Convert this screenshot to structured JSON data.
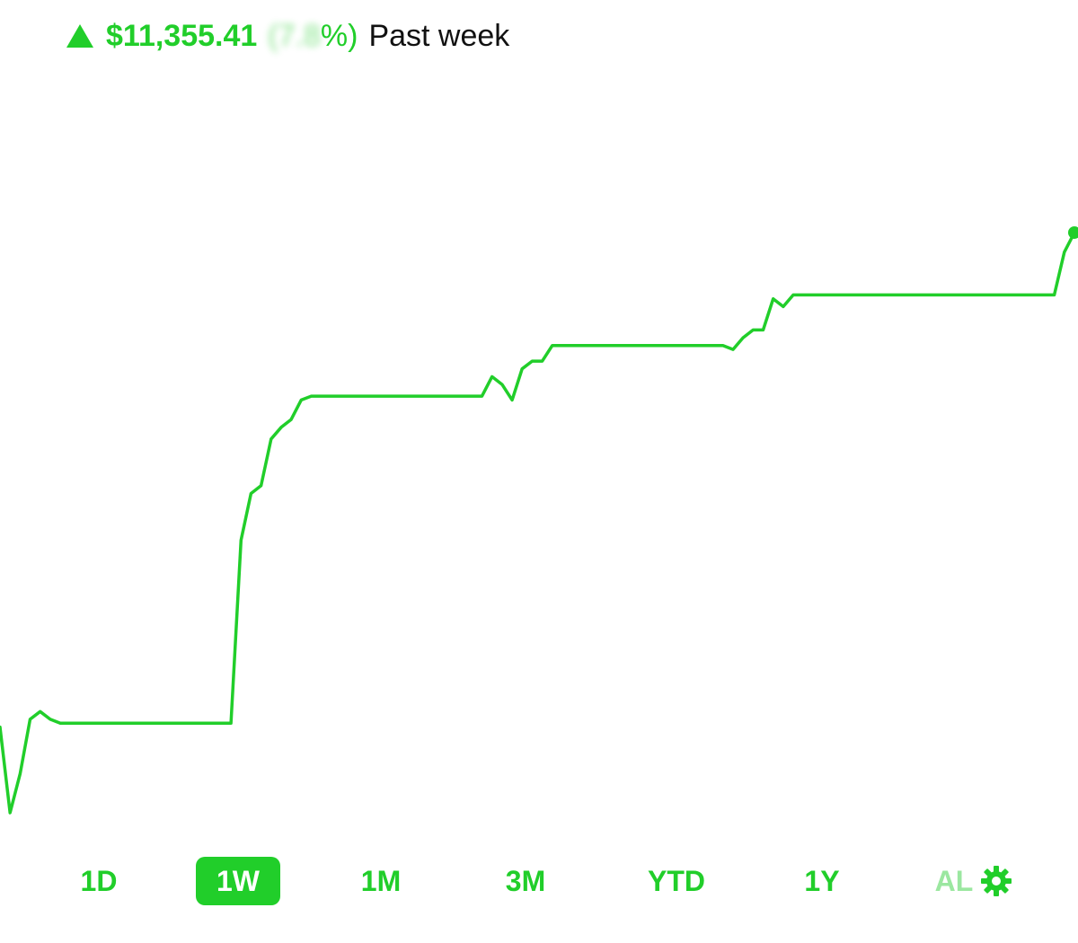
{
  "header": {
    "direction_icon": "triangle-up-icon",
    "change_amount": "$11,355.41",
    "change_percent_open": "(",
    "change_percent_obscured": "7.8",
    "change_percent_close": "%)",
    "period_label": "Past week"
  },
  "colors": {
    "accent": "#21ce2a",
    "accent_faded": "#9be7a0",
    "text": "#111111",
    "background": "#ffffff"
  },
  "chart_data": {
    "type": "line",
    "series_color": "#21ce2a",
    "values": [
      18,
      7,
      12,
      19,
      20,
      19,
      18.5,
      18.5,
      18.5,
      18.5,
      18.5,
      18.5,
      18.5,
      18.5,
      18.5,
      18.5,
      18.5,
      18.5,
      18.5,
      18.5,
      18.5,
      18.5,
      18.5,
      18.5,
      42,
      48,
      49,
      55,
      56.5,
      57.5,
      60,
      60.5,
      60.5,
      60.5,
      60.5,
      60.5,
      60.5,
      60.5,
      60.5,
      60.5,
      60.5,
      60.5,
      60.5,
      60.5,
      60.5,
      60.5,
      60.5,
      60.5,
      60.5,
      63,
      62,
      60,
      64,
      65,
      65,
      67,
      67,
      67,
      67,
      67,
      67,
      67,
      67,
      67,
      67,
      67,
      67,
      67,
      67,
      67,
      67,
      67,
      67,
      66.5,
      68,
      69,
      69,
      73,
      72,
      73.5,
      73.5,
      73.5,
      73.5,
      73.5,
      73.5,
      73.5,
      73.5,
      73.5,
      73.5,
      73.5,
      73.5,
      73.5,
      73.5,
      73.5,
      73.5,
      73.5,
      73.5,
      73.5,
      73.5,
      73.5,
      73.5,
      73.5,
      73.5,
      73.5,
      73.5,
      73.5,
      79,
      81.5
    ],
    "grid": false,
    "legend": "none",
    "end_marker": true
  },
  "range_selector": {
    "options": [
      {
        "label": "1D",
        "active": false,
        "faded": false
      },
      {
        "label": "1W",
        "active": true,
        "faded": false
      },
      {
        "label": "1M",
        "active": false,
        "faded": false
      },
      {
        "label": "3M",
        "active": false,
        "faded": false
      },
      {
        "label": "YTD",
        "active": false,
        "faded": false
      },
      {
        "label": "1Y",
        "active": false,
        "faded": false
      },
      {
        "label": "AL",
        "active": false,
        "faded": true
      }
    ],
    "settings_icon": "gear-icon"
  }
}
